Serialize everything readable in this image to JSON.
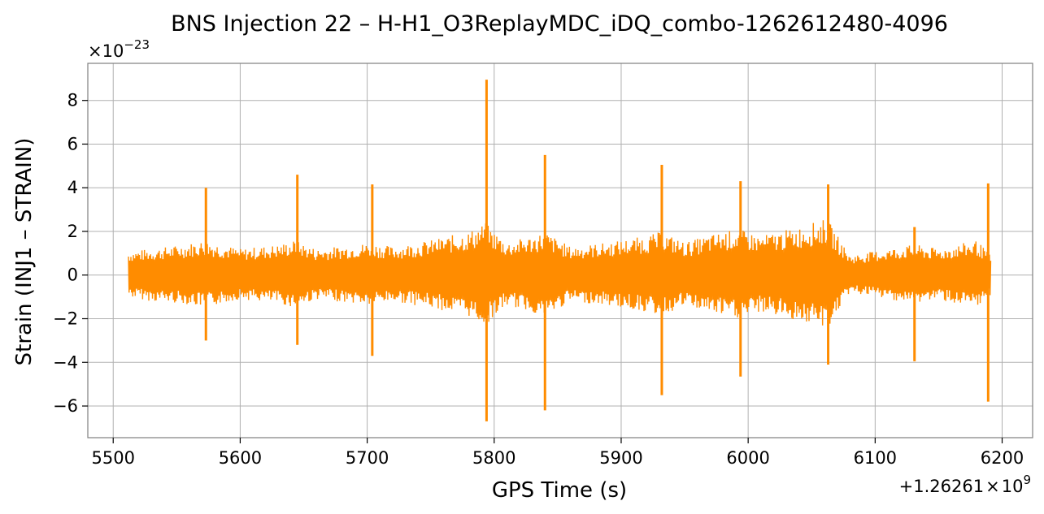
{
  "chart_data": {
    "type": "line",
    "title": "BNS Injection 22 – H-H1_O3ReplayMDC_iDQ_combo-1262612480-4096",
    "xlabel": "GPS Time (s)",
    "ylabel": "Strain (INJ1 – STRAIN)",
    "x_offset_label": "+1.26261×10⁹",
    "y_scale_label": "×10⁻²³",
    "x_offset_display": {
      "base": "+1.26261",
      "times": "×",
      "power_base": "10",
      "exponent": "9"
    },
    "y_scale_display": {
      "times": "×",
      "power_base": "10",
      "exponent": "−23"
    },
    "xlim": [
      5480,
      6224
    ],
    "ylim": [
      -7.45,
      9.7
    ],
    "xticks": [
      5500,
      5600,
      5700,
      5800,
      5900,
      6000,
      6100,
      6200
    ],
    "xtick_labels": [
      "5500",
      "5600",
      "5700",
      "5800",
      "5900",
      "6000",
      "6100",
      "6200"
    ],
    "yticks": [
      -6,
      -4,
      -2,
      0,
      2,
      4,
      6,
      8
    ],
    "ytick_labels": [
      "−6",
      "−4",
      "−2",
      "0",
      "2",
      "4",
      "6",
      "8"
    ],
    "grid": true,
    "series": [
      {
        "color": "#ff8c00",
        "x_range": [
          5512,
          6191
        ],
        "envelope": {
          "x": [
            5512,
            5530,
            5555,
            5572,
            5600,
            5630,
            5643,
            5660,
            5690,
            5702,
            5720,
            5750,
            5780,
            5793,
            5810,
            5830,
            5840,
            5860,
            5890,
            5920,
            5932,
            5950,
            5980,
            5993,
            6010,
            6040,
            6062,
            6080,
            6110,
            6131,
            6150,
            6180,
            6191
          ],
          "upper": [
            1.1,
            1.2,
            1.4,
            1.6,
            1.2,
            1.4,
            1.6,
            1.2,
            1.4,
            1.5,
            1.3,
            1.6,
            2.0,
            2.4,
            1.5,
            1.8,
            2.0,
            1.3,
            1.5,
            1.8,
            2.0,
            1.5,
            2.0,
            2.1,
            1.8,
            2.2,
            2.6,
            0.9,
            1.2,
            1.4,
            1.2,
            1.6,
            0.9
          ],
          "lower": [
            -1.0,
            -1.2,
            -1.3,
            -1.5,
            -1.1,
            -1.3,
            -1.5,
            -1.1,
            -1.3,
            -1.4,
            -1.2,
            -1.5,
            -1.9,
            -2.3,
            -1.4,
            -1.7,
            -2.0,
            -1.2,
            -1.4,
            -1.7,
            -1.9,
            -1.4,
            -1.9,
            -2.0,
            -1.7,
            -2.1,
            -2.5,
            -0.8,
            -1.1,
            -1.3,
            -1.1,
            -1.6,
            -0.9
          ]
        },
        "spikes": [
          {
            "x": 5573,
            "max": 4.0,
            "min": -3.0
          },
          {
            "x": 5645,
            "max": 4.6,
            "min": -3.2
          },
          {
            "x": 5704,
            "max": 4.15,
            "min": -3.7
          },
          {
            "x": 5794,
            "max": 8.95,
            "min": -6.7
          },
          {
            "x": 5840,
            "max": 5.5,
            "min": -6.2
          },
          {
            "x": 5932,
            "max": 5.05,
            "min": -5.5
          },
          {
            "x": 5994,
            "max": 4.3,
            "min": -4.65
          },
          {
            "x": 6063,
            "max": 4.15,
            "min": -4.1
          },
          {
            "x": 6131,
            "max": 2.2,
            "min": -3.95
          },
          {
            "x": 6189,
            "max": 4.2,
            "min": -5.8
          }
        ]
      }
    ]
  }
}
